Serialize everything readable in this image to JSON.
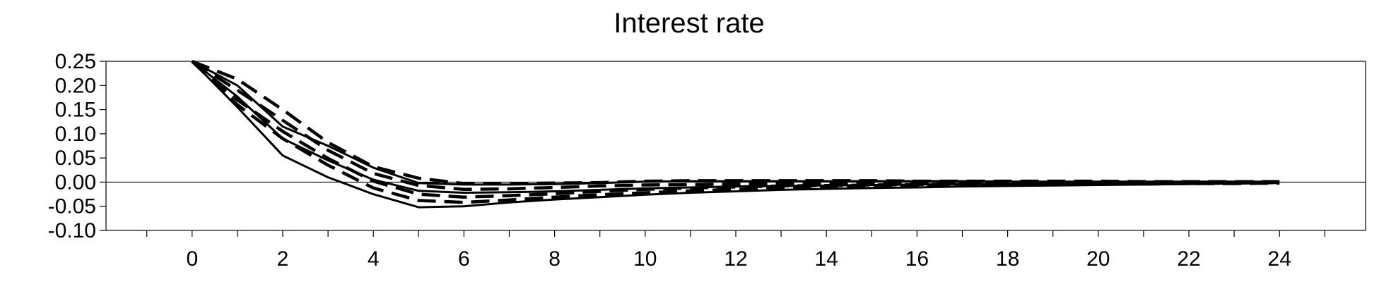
{
  "chart_data": {
    "type": "line",
    "title": "Interest rate",
    "xlabel": "",
    "ylabel": "",
    "xlim": [
      -1.9,
      25.9
    ],
    "ylim": [
      -0.1,
      0.25
    ],
    "x_ticks": [
      0,
      2,
      4,
      6,
      8,
      10,
      12,
      14,
      16,
      18,
      20,
      22,
      24
    ],
    "x_tick_labels": [
      "0",
      "2",
      "4",
      "6",
      "8",
      "10",
      "12",
      "14",
      "16",
      "18",
      "20",
      "22",
      "24"
    ],
    "y_ticks": [
      0.25,
      0.2,
      0.15,
      0.1,
      0.05,
      0.0,
      -0.05,
      -0.1
    ],
    "y_tick_labels": [
      "0.25",
      "0.20",
      "0.15",
      "0.10",
      "0.05",
      "0.00",
      "-0.05",
      "-0.10"
    ],
    "zero_line": true,
    "grid": false,
    "x": [
      0,
      1,
      2,
      3,
      4,
      5,
      6,
      7,
      8,
      9,
      10,
      11,
      12,
      13,
      14,
      15,
      16,
      17,
      18,
      19,
      20,
      21,
      22,
      23,
      24
    ],
    "series": [
      {
        "style": "solid",
        "values": [
          0.25,
          0.177,
          0.09,
          0.045,
          0.005,
          -0.018,
          -0.022,
          -0.021,
          -0.019,
          -0.016,
          -0.013,
          -0.011,
          -0.009,
          -0.008,
          -0.007,
          -0.006,
          -0.005,
          -0.004,
          -0.004,
          -0.003,
          -0.003,
          -0.002,
          -0.002,
          -0.002,
          -0.001
        ]
      },
      {
        "style": "solid",
        "values": [
          0.25,
          0.2,
          0.115,
          0.075,
          0.03,
          -0.002,
          -0.005,
          -0.005,
          -0.004,
          -0.002,
          0.001,
          0.002,
          0.002,
          0.002,
          0.002,
          0.002,
          0.002,
          0.002,
          0.001,
          0.001,
          0.001,
          0.001,
          0.001,
          0.001,
          0.001
        ]
      },
      {
        "style": "solid",
        "values": [
          0.25,
          0.155,
          0.055,
          0.01,
          -0.025,
          -0.052,
          -0.05,
          -0.042,
          -0.036,
          -0.031,
          -0.026,
          -0.022,
          -0.019,
          -0.016,
          -0.014,
          -0.012,
          -0.011,
          -0.009,
          -0.008,
          -0.007,
          -0.006,
          -0.005,
          -0.004,
          -0.003,
          -0.002
        ]
      },
      {
        "style": "dashed",
        "values": [
          0.25,
          0.213,
          0.15,
          0.082,
          0.032,
          0.008,
          -0.003,
          -0.003,
          -0.002,
          -0.001,
          0.002,
          0.003,
          0.003,
          0.003,
          0.003,
          0.003,
          0.002,
          0.002,
          0.002,
          0.002,
          0.002,
          0.001,
          0.001,
          0.001,
          0.001
        ]
      },
      {
        "style": "dashed",
        "values": [
          0.25,
          0.19,
          0.128,
          0.066,
          0.018,
          -0.007,
          -0.015,
          -0.014,
          -0.011,
          -0.008,
          -0.006,
          -0.005,
          -0.004,
          -0.003,
          -0.003,
          -0.002,
          -0.002,
          -0.002,
          -0.001,
          -0.001,
          -0.001,
          -0.001,
          -0.001,
          -0.001,
          0.0
        ]
      },
      {
        "style": "dashed",
        "values": [
          0.25,
          0.17,
          0.105,
          0.049,
          0.002,
          -0.025,
          -0.031,
          -0.028,
          -0.024,
          -0.019,
          -0.015,
          -0.012,
          -0.01,
          -0.008,
          -0.007,
          -0.006,
          -0.005,
          -0.004,
          -0.004,
          -0.003,
          -0.003,
          -0.002,
          -0.002,
          -0.002,
          -0.001
        ]
      },
      {
        "style": "dashed",
        "values": [
          0.25,
          0.16,
          0.09,
          0.035,
          -0.012,
          -0.038,
          -0.042,
          -0.037,
          -0.031,
          -0.026,
          -0.022,
          -0.018,
          -0.015,
          -0.013,
          -0.011,
          -0.009,
          -0.008,
          -0.007,
          -0.006,
          -0.005,
          -0.004,
          -0.004,
          -0.003,
          -0.003,
          -0.002
        ]
      }
    ]
  }
}
